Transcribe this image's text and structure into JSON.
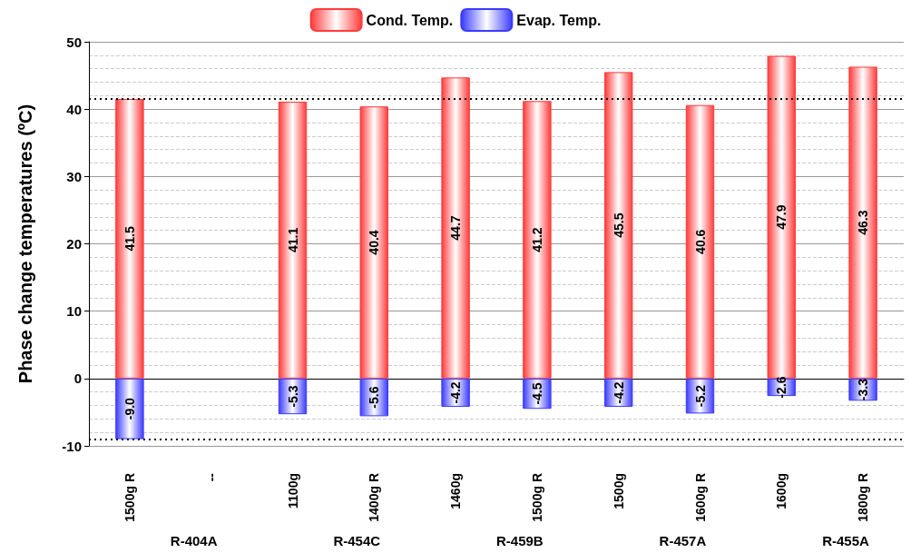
{
  "chart_data": {
    "type": "bar",
    "ylabel": "Phase change temperatures (ºC)",
    "categories": [
      "1500g R",
      "--",
      "1100g",
      "1400g R",
      "1460g",
      "1500g R",
      "1500g",
      "1600g R",
      "1600g",
      "1800g R"
    ],
    "series": [
      {
        "name": "Cond. Temp.",
        "color": "#ff3b3b",
        "values": [
          41.5,
          null,
          41.1,
          40.4,
          44.7,
          41.2,
          45.5,
          40.6,
          47.9,
          46.3
        ],
        "value_labels": [
          "41.5",
          null,
          "41.1",
          "40.4",
          "44.7",
          "41.2",
          "45.5",
          "40.6",
          "47.9",
          "46.3"
        ]
      },
      {
        "name": "Evap. Temp.",
        "color": "#3b3bff",
        "values": [
          -9.0,
          null,
          -5.3,
          -5.6,
          -4.2,
          -4.5,
          -4.2,
          -5.2,
          -2.6,
          -3.3
        ],
        "value_labels": [
          "-9.0",
          null,
          "-5.3",
          "-5.6",
          "-4.2",
          "-4.5",
          "-4.2",
          "-5.2",
          "-2.6",
          "-3.3"
        ]
      }
    ],
    "annotations": [
      "R-404A",
      "R-454C",
      "R-459B",
      "R-457A",
      "R-455A"
    ],
    "ylim": [
      -10,
      50
    ],
    "yticks": [
      -10,
      0,
      10,
      20,
      30,
      40,
      50
    ],
    "ref_lines": [
      {
        "axis": "y",
        "value": 41.5,
        "line_style": "dotted",
        "color": "#000000"
      },
      {
        "axis": "y",
        "value": -9.0,
        "line_style": "dotted",
        "color": "#000000"
      }
    ],
    "stacked": true,
    "grid": "y",
    "legend": "top"
  }
}
